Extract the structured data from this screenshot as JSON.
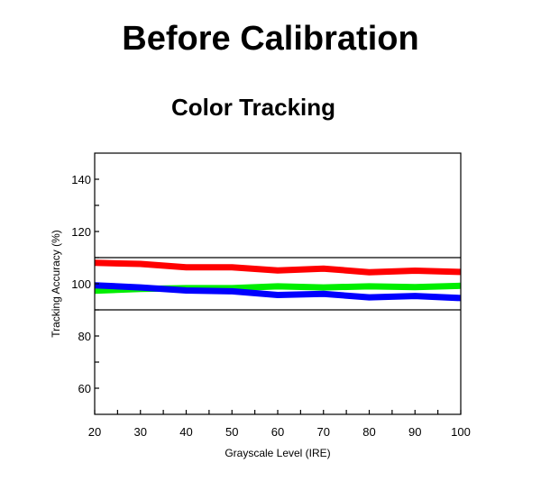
{
  "page": {
    "title": "Before Calibration"
  },
  "chart_data": {
    "type": "line",
    "title": "Color Tracking",
    "xlabel": "Grayscale Level (IRE)",
    "ylabel": "Tracking Accuracy (%)",
    "x": [
      20,
      30,
      40,
      50,
      60,
      70,
      80,
      90,
      100
    ],
    "xlim": [
      20,
      100
    ],
    "ylim": [
      50,
      150
    ],
    "xticks": [
      "20",
      "30",
      "40",
      "50",
      "60",
      "70",
      "80",
      "90",
      "100"
    ],
    "yticks": [
      "60",
      "80",
      "100",
      "120",
      "140"
    ],
    "reference_lines": [
      90,
      110
    ],
    "grid": false,
    "legend": "none",
    "series": [
      {
        "color": "#ff0000",
        "values": [
          108.0,
          107.6,
          106.3,
          106.3,
          105.1,
          105.8,
          104.4,
          105.0,
          104.5
        ]
      },
      {
        "color": "#00ee00",
        "values": [
          97.3,
          98.0,
          98.3,
          98.3,
          99.0,
          98.6,
          99.0,
          98.7,
          99.2
        ]
      },
      {
        "color": "#0000ff",
        "values": [
          99.4,
          98.6,
          97.4,
          97.1,
          95.7,
          96.1,
          94.8,
          95.3,
          94.5
        ]
      }
    ]
  }
}
